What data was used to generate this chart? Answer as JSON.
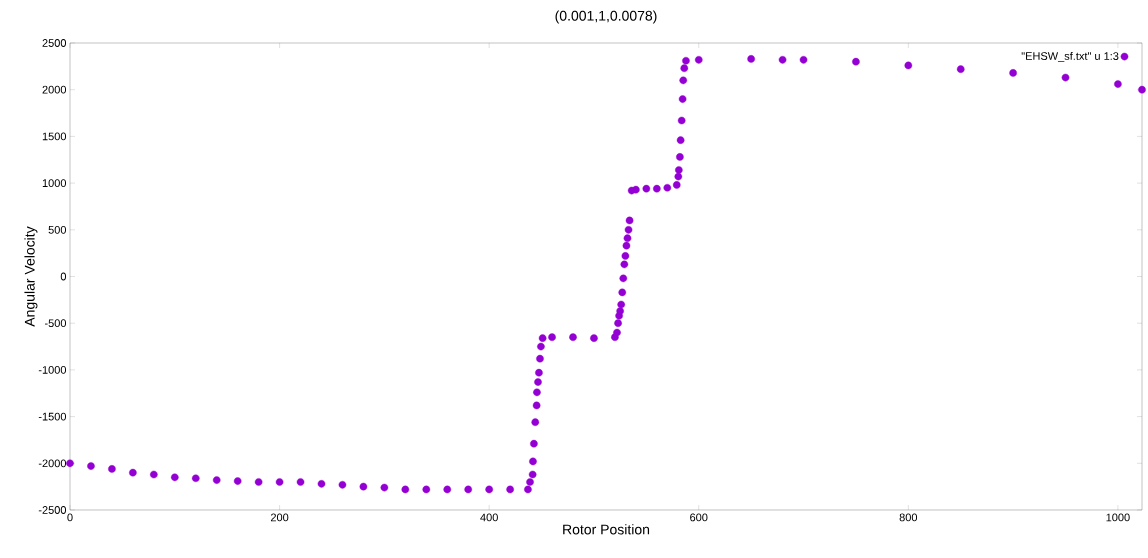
{
  "chart_data": {
    "type": "scatter",
    "title": "(0.001,1,0.0078)",
    "xlabel": "Rotor Position",
    "ylabel": "Angular Velocity",
    "xlim": [
      0,
      1023
    ],
    "ylim": [
      -2500,
      2500
    ],
    "xticks": [
      0,
      200,
      400,
      600,
      800,
      1000
    ],
    "yticks": [
      -2500,
      -2000,
      -1500,
      -1000,
      -500,
      0,
      500,
      1000,
      1500,
      2000,
      2500
    ],
    "grid": false,
    "legend": "top right",
    "series": [
      {
        "name": "\"EHSW_sf.txt\" u 1:3",
        "color": "#9400d3",
        "x": [
          0,
          20,
          40,
          60,
          80,
          100,
          120,
          140,
          160,
          180,
          200,
          220,
          240,
          260,
          280,
          300,
          320,
          340,
          360,
          380,
          400,
          420,
          437,
          439,
          441.5,
          441.8,
          442.7,
          444,
          445.3,
          445.6,
          446.6,
          447.5,
          448.5,
          449.4,
          451,
          460,
          480,
          500,
          520,
          522,
          523,
          524,
          525,
          526,
          527,
          528,
          529,
          530,
          531,
          532,
          533,
          534,
          536,
          540,
          550,
          560,
          570,
          579,
          580.5,
          581,
          582,
          582.7,
          583.7,
          584.6,
          585.2,
          586.2,
          587.8,
          600,
          650,
          680,
          700,
          750,
          800,
          850,
          900,
          950,
          1000,
          1023
        ],
        "values": [
          -2000,
          -2030,
          -2060,
          -2100,
          -2120,
          -2150,
          -2160,
          -2180,
          -2190,
          -2200,
          -2200,
          -2200,
          -2220,
          -2230,
          -2250,
          -2260,
          -2280,
          -2280,
          -2280,
          -2280,
          -2280,
          -2280,
          -2280,
          -2200,
          -2120,
          -1980,
          -1790,
          -1560,
          -1380,
          -1240,
          -1130,
          -1030,
          -880,
          -750,
          -660,
          -650,
          -650,
          -660,
          -650,
          -600,
          -500,
          -420,
          -370,
          -300,
          -170,
          -20,
          130,
          220,
          330,
          410,
          500,
          600,
          920,
          930,
          940,
          940,
          950,
          980,
          1070,
          1140,
          1280,
          1460,
          1670,
          1900,
          2100,
          2230,
          2310,
          2320,
          2330,
          2320,
          2320,
          2300,
          2260,
          2220,
          2180,
          2130,
          2060,
          2000
        ]
      }
    ]
  }
}
